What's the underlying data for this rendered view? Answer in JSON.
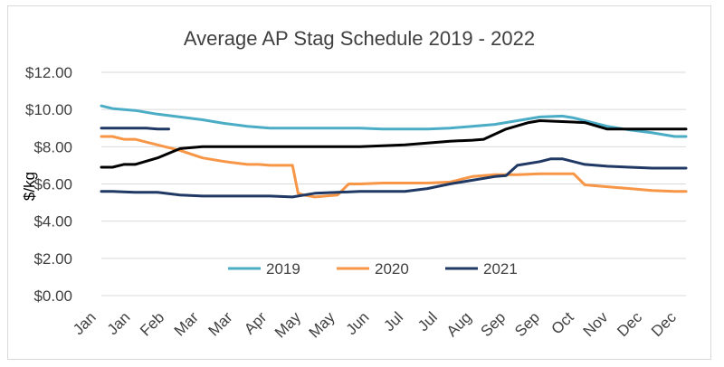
{
  "chart_data": {
    "type": "line",
    "title": "Average AP Stag Schedule 2019 - 2022",
    "xlabel": "",
    "ylabel": "$/kg",
    "ylim": [
      0,
      12
    ],
    "y_ticks": [
      "$0.00",
      "$2.00",
      "$4.00",
      "$6.00",
      "$8.00",
      "$10.00",
      "$12.00"
    ],
    "x_tick_labels": [
      "Jan",
      "Jan",
      "Feb",
      "Mar",
      "Mar",
      "Apr",
      "May",
      "May",
      "Jun",
      "Jul",
      "Jul",
      "Aug",
      "Sep",
      "Sep",
      "Oct",
      "Nov",
      "Dec",
      "Dec"
    ],
    "x_range": [
      0,
      52
    ],
    "legend_position": "bottom-center",
    "grid": true,
    "legend": [
      "2019",
      "2020",
      "2021"
    ],
    "series": [
      {
        "name": "2019",
        "color": "#4bacc6",
        "x": [
          0,
          1,
          3,
          5,
          7,
          9,
          11,
          13,
          15,
          17,
          19,
          21,
          23,
          25,
          27,
          29,
          31,
          33,
          35,
          37,
          39,
          41,
          42,
          43,
          45,
          47,
          49,
          51,
          52
        ],
        "y": [
          10.2,
          10.05,
          9.95,
          9.75,
          9.6,
          9.45,
          9.25,
          9.1,
          9.0,
          9.0,
          9.0,
          9.0,
          9.0,
          8.95,
          8.95,
          8.95,
          9.0,
          9.1,
          9.2,
          9.4,
          9.6,
          9.65,
          9.55,
          9.4,
          9.1,
          8.9,
          8.75,
          8.55,
          8.55
        ]
      },
      {
        "name": "2020",
        "color": "#f79646",
        "x": [
          0,
          1,
          2,
          3,
          5,
          7,
          9,
          11,
          13,
          14,
          15,
          17,
          17.5,
          18,
          19,
          21,
          22,
          23,
          25,
          27,
          29,
          31,
          33,
          35,
          37,
          39,
          41,
          42,
          43,
          45,
          47,
          49,
          51,
          52
        ],
        "y": [
          8.55,
          8.55,
          8.4,
          8.4,
          8.1,
          7.8,
          7.4,
          7.2,
          7.05,
          7.05,
          7.0,
          7.0,
          5.5,
          5.4,
          5.3,
          5.4,
          6.0,
          6.0,
          6.05,
          6.05,
          6.05,
          6.1,
          6.4,
          6.5,
          6.5,
          6.55,
          6.55,
          6.55,
          5.95,
          5.85,
          5.75,
          5.65,
          5.6,
          5.6
        ]
      },
      {
        "name": "2021",
        "color": "#1f3864",
        "x": [
          0,
          1,
          3,
          5,
          7,
          9,
          11,
          13,
          15,
          17,
          19,
          21,
          23,
          25,
          27,
          29,
          31,
          33,
          35,
          36,
          37,
          39,
          40,
          41,
          43,
          45,
          47,
          49,
          51,
          52
        ],
        "y": [
          5.6,
          5.6,
          5.55,
          5.55,
          5.4,
          5.35,
          5.35,
          5.35,
          5.35,
          5.3,
          5.5,
          5.55,
          5.6,
          5.6,
          5.6,
          5.75,
          6.0,
          6.2,
          6.4,
          6.45,
          7.0,
          7.2,
          7.35,
          7.35,
          7.05,
          6.95,
          6.9,
          6.85,
          6.85,
          6.85
        ]
      },
      {
        "name": "",
        "color": "#000000",
        "x": [
          0,
          1,
          2,
          3,
          5,
          7,
          9,
          11,
          13,
          15,
          17,
          19,
          21,
          23,
          25,
          27,
          29,
          31,
          33,
          34,
          36,
          38,
          39,
          41,
          43,
          45,
          47,
          49,
          51,
          52
        ],
        "y": [
          6.9,
          6.9,
          7.05,
          7.05,
          7.4,
          7.9,
          8.0,
          8.0,
          8.0,
          8.0,
          8.0,
          8.0,
          8.0,
          8.0,
          8.05,
          8.1,
          8.2,
          8.3,
          8.35,
          8.4,
          8.95,
          9.3,
          9.4,
          9.35,
          9.3,
          8.95,
          8.95,
          8.95,
          8.95,
          8.95
        ]
      },
      {
        "name": "",
        "color": "#1f3864",
        "x": [
          0,
          1,
          2,
          3,
          4,
          5,
          6
        ],
        "y": [
          9.0,
          9.0,
          9.0,
          9.0,
          9.0,
          8.95,
          8.95
        ]
      }
    ]
  }
}
